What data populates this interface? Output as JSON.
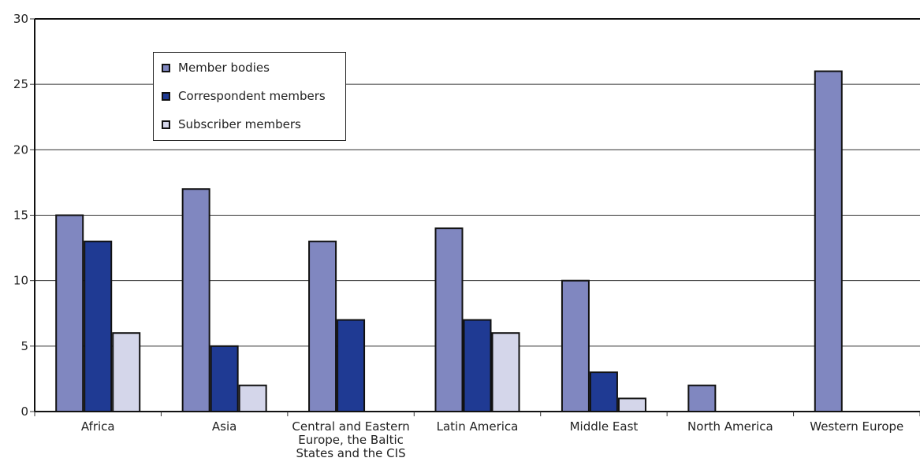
{
  "chart_data": {
    "type": "bar",
    "title": "",
    "xlabel": "",
    "ylabel": "",
    "ylim": [
      0,
      30
    ],
    "yticks": [
      0,
      5,
      10,
      15,
      20,
      25,
      30
    ],
    "grid": true,
    "legend_position": "top-left",
    "categories": [
      "Africa",
      "Asia",
      "Central and Eastern Europe, the Baltic States and the CIS",
      "Latin America",
      "Middle East",
      "North America",
      "Western Europe"
    ],
    "category_label_lines": [
      [
        "Africa"
      ],
      [
        "Asia"
      ],
      [
        "Central and Eastern",
        "Europe, the Baltic",
        "States and the CIS"
      ],
      [
        "Latin America"
      ],
      [
        "Middle East"
      ],
      [
        "North America"
      ],
      [
        "Western Europe"
      ]
    ],
    "series": [
      {
        "name": "Member bodies",
        "color": "#8087c0",
        "values": [
          15,
          17,
          13,
          14,
          10,
          2,
          26
        ]
      },
      {
        "name": "Correspondent members",
        "color": "#1f3a93",
        "values": [
          13,
          5,
          7,
          7,
          3,
          0,
          0
        ]
      },
      {
        "name": "Subscriber members",
        "color": "#d4d6ea",
        "values": [
          6,
          2,
          0,
          6,
          1,
          0,
          0
        ]
      }
    ]
  }
}
